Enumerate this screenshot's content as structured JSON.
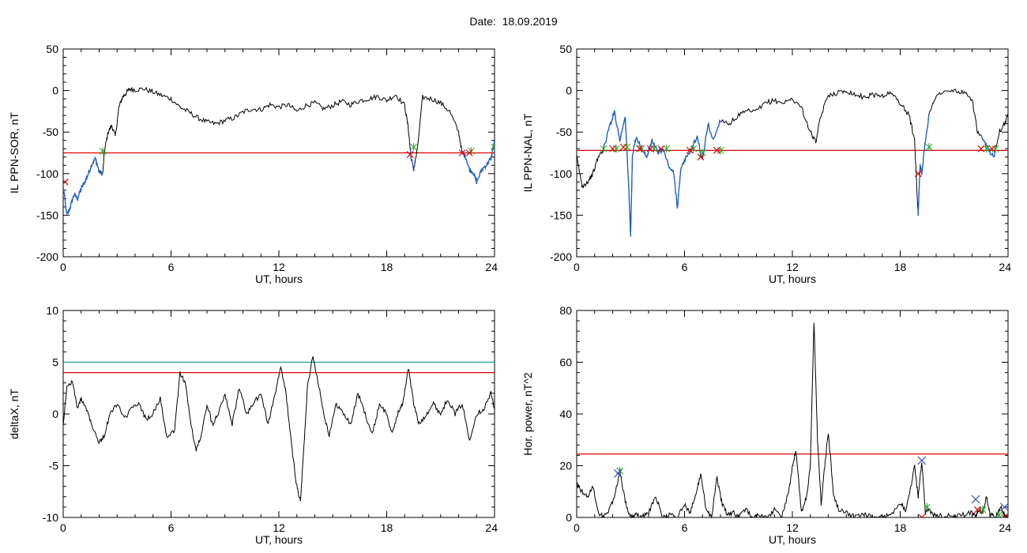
{
  "header": {
    "date_label": "Date:  18.09.2019"
  },
  "colors": {
    "trace": "#000000",
    "disturbed": "#1f5fc8",
    "threshold": "#e00000",
    "threshold2": "#1a9e8f",
    "start_marker": "#2ea82e",
    "end_marker": "#e00000",
    "peak_marker": "#3355cc"
  },
  "chart_data": [
    {
      "type": "line",
      "xlabel": "UT, hours",
      "ylabel": "IL PPN-SOR, nT",
      "xlim": [
        0,
        24
      ],
      "ylim": [
        -200,
        50
      ],
      "xticks": [
        0,
        6,
        12,
        18,
        24
      ],
      "yticks": [
        50,
        0,
        -50,
        -100,
        -150,
        -200
      ],
      "grid": false,
      "series": [
        {
          "role": "trace",
          "x": [
            0,
            0.2,
            0.4,
            0.6,
            0.8,
            1.0,
            1.2,
            1.4,
            1.6,
            1.8,
            2.0,
            2.2,
            2.3,
            2.5,
            2.7,
            2.9,
            3.1,
            3.3,
            3.5,
            3.7,
            4.0,
            4.5,
            5.0,
            5.5,
            6.0,
            6.5,
            7.0,
            7.5,
            8.0,
            8.5,
            9.0,
            9.5,
            10.0,
            10.5,
            11.0,
            11.5,
            12.0,
            12.5,
            13.0,
            13.5,
            14.0,
            14.5,
            15.0,
            15.5,
            16.0,
            16.5,
            17.0,
            17.5,
            18.0,
            18.5,
            19.0,
            19.2,
            19.35,
            19.5,
            19.7,
            20.0,
            20.5,
            21.0,
            21.5,
            22.0,
            22.2,
            22.4,
            22.6,
            22.8,
            23.0,
            23.3,
            23.6,
            23.8,
            24.0
          ],
          "y": [
            -115,
            -150,
            -140,
            -125,
            -130,
            -118,
            -110,
            -100,
            -88,
            -82,
            -98,
            -100,
            -72,
            -50,
            -42,
            -55,
            -20,
            -8,
            -3,
            2,
            1,
            2,
            -2,
            -6,
            -10,
            -20,
            -26,
            -33,
            -38,
            -40,
            -36,
            -33,
            -26,
            -22,
            -23,
            -17,
            -20,
            -17,
            -25,
            -18,
            -15,
            -22,
            -18,
            -13,
            -17,
            -12,
            -10,
            -7,
            -12,
            -5,
            -18,
            -45,
            -80,
            -95,
            -72,
            -8,
            -10,
            -15,
            -25,
            -50,
            -75,
            -80,
            -95,
            -98,
            -110,
            -95,
            -88,
            -82,
            -60
          ]
        },
        {
          "role": "threshold",
          "y_value": -75
        },
        {
          "role": "start-markers",
          "x": [
            2.2,
            19.5,
            22.7,
            24.0
          ],
          "y": [
            -73,
            -68,
            -73,
            -68
          ]
        },
        {
          "role": "end-markers",
          "x": [
            0.1,
            19.3,
            22.2,
            22.6
          ],
          "y": [
            -110,
            -77,
            -75,
            -75
          ]
        }
      ],
      "disturbed_segments": [
        [
          0,
          2.2
        ],
        [
          19.3,
          19.5
        ],
        [
          22.2,
          24.0
        ]
      ]
    },
    {
      "type": "line",
      "xlabel": "UT, hours",
      "ylabel": "IL PPN-NAL, nT",
      "xlim": [
        0,
        24
      ],
      "ylim": [
        -200,
        50
      ],
      "xticks": [
        0,
        6,
        12,
        18,
        24
      ],
      "yticks": [
        50,
        0,
        -50,
        -100,
        -150,
        -200
      ],
      "grid": false,
      "series": [
        {
          "role": "trace",
          "x": [
            0,
            0.3,
            0.6,
            0.9,
            1.2,
            1.5,
            1.8,
            2.1,
            2.4,
            2.7,
            2.9,
            3.0,
            3.1,
            3.3,
            3.6,
            3.9,
            4.2,
            4.5,
            4.8,
            5.1,
            5.4,
            5.6,
            5.8,
            6.1,
            6.4,
            6.7,
            7.0,
            7.3,
            7.6,
            8.0,
            8.5,
            9.0,
            9.5,
            10.0,
            10.5,
            11.0,
            11.5,
            12.0,
            12.5,
            13.0,
            13.3,
            13.6,
            14.0,
            14.5,
            15.0,
            15.5,
            16.0,
            16.5,
            17.0,
            17.5,
            18.0,
            18.5,
            18.8,
            19.0,
            19.1,
            19.2,
            19.4,
            19.6,
            20.0,
            20.5,
            21.0,
            21.5,
            22.0,
            22.3,
            22.6,
            22.9,
            23.2,
            23.5,
            23.8,
            24.0
          ],
          "y": [
            -80,
            -115,
            -110,
            -100,
            -80,
            -70,
            -45,
            -25,
            -60,
            -30,
            -120,
            -175,
            -80,
            -55,
            -70,
            -80,
            -60,
            -75,
            -70,
            -90,
            -100,
            -140,
            -95,
            -80,
            -70,
            -55,
            -85,
            -40,
            -60,
            -35,
            -40,
            -30,
            -25,
            -25,
            -15,
            -12,
            -15,
            -10,
            -20,
            -50,
            -62,
            -30,
            -5,
            -3,
            0,
            -5,
            -8,
            -5,
            -6,
            -3,
            -15,
            -30,
            -60,
            -150,
            -90,
            -100,
            -60,
            -30,
            -5,
            -2,
            0,
            -3,
            -10,
            -50,
            -60,
            -70,
            -80,
            -50,
            -40,
            -30
          ]
        },
        {
          "role": "threshold",
          "y_value": -72
        },
        {
          "role": "start-markers",
          "x": [
            1.5,
            2.2,
            2.8,
            3.6,
            4.3,
            5.0,
            6.5,
            7.0,
            8.0,
            19.6,
            22.8,
            23.3
          ],
          "y": [
            -70,
            -70,
            -68,
            -70,
            -70,
            -70,
            -70,
            -75,
            -72,
            -68,
            -70,
            -70
          ]
        },
        {
          "role": "end-markers",
          "x": [
            2.0,
            2.6,
            3.5,
            4.1,
            4.7,
            6.3,
            6.9,
            7.8,
            19.0,
            22.5,
            23.1
          ],
          "y": [
            -70,
            -68,
            -70,
            -70,
            -70,
            -72,
            -80,
            -72,
            -100,
            -70,
            -70
          ]
        }
      ],
      "disturbed_segments": [
        [
          1.5,
          8.0
        ],
        [
          19.0,
          19.6
        ],
        [
          22.5,
          23.3
        ]
      ]
    },
    {
      "type": "line",
      "xlabel": "UT, hours",
      "ylabel": "deltaX, nT",
      "xlim": [
        0,
        24
      ],
      "ylim": [
        -10,
        10
      ],
      "xticks": [
        0,
        6,
        12,
        18,
        24
      ],
      "yticks": [
        10,
        5,
        0,
        -5,
        -10
      ],
      "grid": false,
      "series": [
        {
          "role": "trace",
          "x": [
            0,
            0.2,
            0.5,
            0.8,
            1.0,
            1.3,
            1.6,
            2.0,
            2.3,
            2.6,
            3.0,
            3.4,
            3.8,
            4.2,
            4.6,
            5.0,
            5.4,
            5.8,
            6.2,
            6.5,
            6.8,
            7.1,
            7.4,
            7.7,
            8.0,
            8.3,
            8.6,
            9.0,
            9.4,
            9.8,
            10.2,
            10.6,
            11.0,
            11.4,
            11.8,
            12.1,
            12.4,
            12.7,
            13.0,
            13.2,
            13.4,
            13.6,
            13.9,
            14.2,
            14.5,
            14.8,
            15.2,
            15.6,
            16.0,
            16.4,
            16.8,
            17.2,
            17.6,
            18.0,
            18.3,
            18.6,
            18.9,
            19.2,
            19.5,
            19.8,
            20.2,
            20.6,
            21.0,
            21.4,
            21.8,
            22.2,
            22.6,
            23.0,
            23.4,
            23.8,
            24.0
          ],
          "y": [
            -1,
            2.5,
            3.2,
            0.5,
            1.5,
            0.5,
            -1,
            -2.8,
            -2,
            0,
            1,
            -0.5,
            0.5,
            1,
            -0.5,
            0,
            1.5,
            -2.5,
            -1.5,
            4,
            3,
            -1,
            -3.5,
            -2,
            1,
            -1,
            0,
            2,
            -1,
            2.5,
            0,
            1,
            2,
            -1,
            2,
            4.5,
            2,
            -3,
            -7,
            -8.5,
            -3,
            3,
            5.5,
            3,
            0,
            -2,
            1,
            0,
            -1,
            2,
            0,
            -2,
            1,
            0,
            -2,
            0,
            1,
            4.5,
            1,
            -1,
            0,
            1,
            0,
            1.5,
            0,
            1,
            -2.5,
            0,
            0.5,
            2,
            0.5
          ]
        },
        {
          "role": "threshold",
          "y_value": 4
        },
        {
          "role": "threshold2",
          "y_value": 5
        }
      ]
    },
    {
      "type": "line",
      "xlabel": "UT, hours",
      "ylabel": "Hor. power, nT^2",
      "xlim": [
        0,
        24
      ],
      "ylim": [
        0,
        80
      ],
      "xticks": [
        0,
        6,
        12,
        18,
        24
      ],
      "yticks": [
        80,
        60,
        40,
        20,
        0
      ],
      "grid": false,
      "series": [
        {
          "role": "trace",
          "x": [
            0,
            0.3,
            0.6,
            0.9,
            1.2,
            1.5,
            1.8,
            2.1,
            2.4,
            2.7,
            3.0,
            3.3,
            3.6,
            4.0,
            4.4,
            4.8,
            5.2,
            5.6,
            6.0,
            6.3,
            6.6,
            6.9,
            7.2,
            7.5,
            7.8,
            8.1,
            8.4,
            8.7,
            9.0,
            9.4,
            9.8,
            10.2,
            10.6,
            11.0,
            11.4,
            11.8,
            12.0,
            12.2,
            12.5,
            12.8,
            13.0,
            13.2,
            13.4,
            13.6,
            13.8,
            14.0,
            14.3,
            14.6,
            15.0,
            15.5,
            16.0,
            16.5,
            17.0,
            17.5,
            18.0,
            18.3,
            18.6,
            18.8,
            19.0,
            19.2,
            19.4,
            19.6,
            20.0,
            20.5,
            21.0,
            21.5,
            22.0,
            22.2,
            22.4,
            22.6,
            22.8,
            23.0,
            23.3,
            23.6,
            23.8,
            24.0
          ],
          "y": [
            13,
            10,
            8,
            12,
            2,
            0,
            3,
            8,
            18,
            6,
            0,
            1,
            0,
            2,
            8,
            0,
            1,
            0,
            5,
            2,
            8,
            17,
            3,
            0,
            15,
            5,
            1,
            2,
            0,
            3,
            0,
            1,
            0,
            3,
            0,
            10,
            20,
            26,
            2,
            8,
            20,
            76,
            30,
            5,
            20,
            33,
            8,
            3,
            2,
            0,
            1,
            0,
            0,
            1,
            6,
            3,
            12,
            20,
            8,
            22,
            2,
            3,
            0,
            1,
            0,
            1,
            2,
            0,
            3,
            2,
            8,
            1,
            0,
            4,
            1,
            0
          ]
        },
        {
          "role": "threshold",
          "y_value": 24.5
        },
        {
          "role": "start-markers",
          "x": [
            2.4,
            19.5,
            22.6,
            23.5
          ],
          "y": [
            18,
            4,
            3,
            1
          ]
        },
        {
          "role": "end-markers",
          "x": [
            19.2,
            22.3,
            23.8
          ],
          "y": [
            0,
            3,
            0
          ]
        },
        {
          "role": "peak-markers",
          "x": [
            2.3,
            19.2,
            22.2,
            23.8
          ],
          "y": [
            17,
            22,
            7,
            4
          ]
        }
      ]
    }
  ]
}
